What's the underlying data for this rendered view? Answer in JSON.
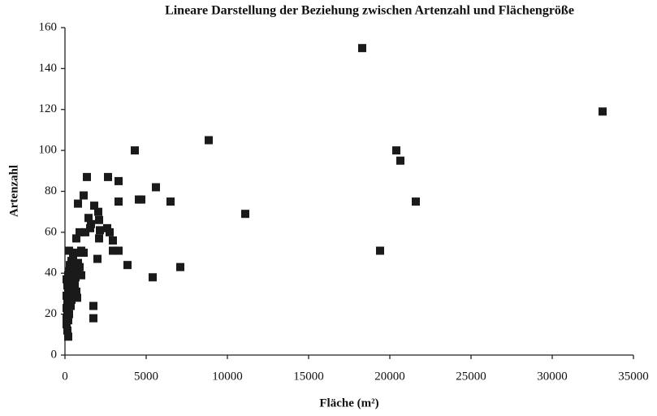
{
  "chart_data": {
    "type": "scatter",
    "title": "Lineare Darstellung der Beziehung zwischen Artenzahl und Flächengröße",
    "x_label": "Fläche (m²)",
    "y_label": "Artenzahl",
    "color": "#1a1a1a",
    "xlim": [
      0,
      35000
    ],
    "xticks": [
      0,
      5000,
      10000,
      15000,
      20000,
      25000,
      30000,
      35000
    ],
    "ylim": [
      0,
      160
    ],
    "yticks": [
      0,
      20,
      40,
      60,
      80,
      100,
      120,
      140,
      160
    ],
    "x": [
      18300,
      33100,
      20400,
      20650,
      21600,
      19400,
      11100,
      8850,
      4300,
      4550,
      4700,
      6500,
      7100,
      5400,
      5600,
      3850,
      3300,
      3300,
      2650,
      1350,
      1150,
      800,
      1750,
      1750,
      2950,
      3300,
      2950,
      2600,
      2750,
      2100,
      2050,
      1800,
      2000,
      2100,
      2150,
      1450,
      1550,
      1250,
      1600,
      1000,
      1150,
      700,
      900,
      200,
      100,
      100,
      150,
      100,
      150,
      100,
      200,
      150,
      100,
      200,
      300,
      250,
      400,
      650,
      900,
      1000,
      750,
      500,
      600,
      400,
      300,
      500,
      700,
      800,
      600,
      400,
      300,
      250,
      200,
      350,
      450,
      550,
      650,
      350,
      250,
      150,
      500,
      700,
      800
    ],
    "values": [
      150,
      119,
      100,
      95,
      75,
      51,
      69,
      105,
      100,
      76,
      76,
      75,
      43,
      38,
      82,
      44,
      85,
      75,
      87,
      87,
      78,
      74,
      24,
      18,
      51,
      51,
      56,
      62,
      60,
      66,
      70,
      73,
      47,
      57,
      61,
      67,
      62,
      60,
      64,
      51,
      50,
      57,
      60,
      9,
      15,
      18,
      21,
      23,
      26,
      29,
      31,
      34,
      37,
      39,
      36,
      51,
      46,
      50,
      43,
      39,
      28,
      30,
      36,
      40,
      44,
      48,
      42,
      45,
      33,
      27,
      32,
      20,
      17,
      24,
      38,
      44,
      38,
      30,
      41,
      12,
      35,
      31,
      40
    ],
    "grid": false
  }
}
